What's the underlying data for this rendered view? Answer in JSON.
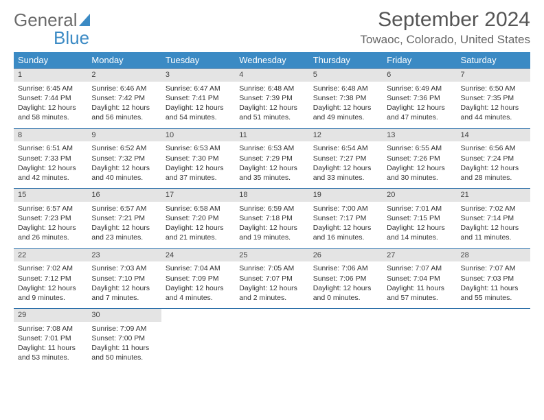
{
  "logo": {
    "line1": "General",
    "line2": "Blue"
  },
  "title": "September 2024",
  "location": "Towaoc, Colorado, United States",
  "colors": {
    "header_bg": "#3b8ac4",
    "row_border": "#2a6ea8",
    "daynum_bg": "#e4e4e4",
    "page_bg": "#ffffff",
    "text": "#333333",
    "logo_gray": "#6b6b6b"
  },
  "weekdays": [
    "Sunday",
    "Monday",
    "Tuesday",
    "Wednesday",
    "Thursday",
    "Friday",
    "Saturday"
  ],
  "start_index": 0,
  "days": [
    {
      "n": "1",
      "sunrise": "Sunrise: 6:45 AM",
      "sunset": "Sunset: 7:44 PM",
      "daylight": "Daylight: 12 hours and 58 minutes."
    },
    {
      "n": "2",
      "sunrise": "Sunrise: 6:46 AM",
      "sunset": "Sunset: 7:42 PM",
      "daylight": "Daylight: 12 hours and 56 minutes."
    },
    {
      "n": "3",
      "sunrise": "Sunrise: 6:47 AM",
      "sunset": "Sunset: 7:41 PM",
      "daylight": "Daylight: 12 hours and 54 minutes."
    },
    {
      "n": "4",
      "sunrise": "Sunrise: 6:48 AM",
      "sunset": "Sunset: 7:39 PM",
      "daylight": "Daylight: 12 hours and 51 minutes."
    },
    {
      "n": "5",
      "sunrise": "Sunrise: 6:48 AM",
      "sunset": "Sunset: 7:38 PM",
      "daylight": "Daylight: 12 hours and 49 minutes."
    },
    {
      "n": "6",
      "sunrise": "Sunrise: 6:49 AM",
      "sunset": "Sunset: 7:36 PM",
      "daylight": "Daylight: 12 hours and 47 minutes."
    },
    {
      "n": "7",
      "sunrise": "Sunrise: 6:50 AM",
      "sunset": "Sunset: 7:35 PM",
      "daylight": "Daylight: 12 hours and 44 minutes."
    },
    {
      "n": "8",
      "sunrise": "Sunrise: 6:51 AM",
      "sunset": "Sunset: 7:33 PM",
      "daylight": "Daylight: 12 hours and 42 minutes."
    },
    {
      "n": "9",
      "sunrise": "Sunrise: 6:52 AM",
      "sunset": "Sunset: 7:32 PM",
      "daylight": "Daylight: 12 hours and 40 minutes."
    },
    {
      "n": "10",
      "sunrise": "Sunrise: 6:53 AM",
      "sunset": "Sunset: 7:30 PM",
      "daylight": "Daylight: 12 hours and 37 minutes."
    },
    {
      "n": "11",
      "sunrise": "Sunrise: 6:53 AM",
      "sunset": "Sunset: 7:29 PM",
      "daylight": "Daylight: 12 hours and 35 minutes."
    },
    {
      "n": "12",
      "sunrise": "Sunrise: 6:54 AM",
      "sunset": "Sunset: 7:27 PM",
      "daylight": "Daylight: 12 hours and 33 minutes."
    },
    {
      "n": "13",
      "sunrise": "Sunrise: 6:55 AM",
      "sunset": "Sunset: 7:26 PM",
      "daylight": "Daylight: 12 hours and 30 minutes."
    },
    {
      "n": "14",
      "sunrise": "Sunrise: 6:56 AM",
      "sunset": "Sunset: 7:24 PM",
      "daylight": "Daylight: 12 hours and 28 minutes."
    },
    {
      "n": "15",
      "sunrise": "Sunrise: 6:57 AM",
      "sunset": "Sunset: 7:23 PM",
      "daylight": "Daylight: 12 hours and 26 minutes."
    },
    {
      "n": "16",
      "sunrise": "Sunrise: 6:57 AM",
      "sunset": "Sunset: 7:21 PM",
      "daylight": "Daylight: 12 hours and 23 minutes."
    },
    {
      "n": "17",
      "sunrise": "Sunrise: 6:58 AM",
      "sunset": "Sunset: 7:20 PM",
      "daylight": "Daylight: 12 hours and 21 minutes."
    },
    {
      "n": "18",
      "sunrise": "Sunrise: 6:59 AM",
      "sunset": "Sunset: 7:18 PM",
      "daylight": "Daylight: 12 hours and 19 minutes."
    },
    {
      "n": "19",
      "sunrise": "Sunrise: 7:00 AM",
      "sunset": "Sunset: 7:17 PM",
      "daylight": "Daylight: 12 hours and 16 minutes."
    },
    {
      "n": "20",
      "sunrise": "Sunrise: 7:01 AM",
      "sunset": "Sunset: 7:15 PM",
      "daylight": "Daylight: 12 hours and 14 minutes."
    },
    {
      "n": "21",
      "sunrise": "Sunrise: 7:02 AM",
      "sunset": "Sunset: 7:14 PM",
      "daylight": "Daylight: 12 hours and 11 minutes."
    },
    {
      "n": "22",
      "sunrise": "Sunrise: 7:02 AM",
      "sunset": "Sunset: 7:12 PM",
      "daylight": "Daylight: 12 hours and 9 minutes."
    },
    {
      "n": "23",
      "sunrise": "Sunrise: 7:03 AM",
      "sunset": "Sunset: 7:10 PM",
      "daylight": "Daylight: 12 hours and 7 minutes."
    },
    {
      "n": "24",
      "sunrise": "Sunrise: 7:04 AM",
      "sunset": "Sunset: 7:09 PM",
      "daylight": "Daylight: 12 hours and 4 minutes."
    },
    {
      "n": "25",
      "sunrise": "Sunrise: 7:05 AM",
      "sunset": "Sunset: 7:07 PM",
      "daylight": "Daylight: 12 hours and 2 minutes."
    },
    {
      "n": "26",
      "sunrise": "Sunrise: 7:06 AM",
      "sunset": "Sunset: 7:06 PM",
      "daylight": "Daylight: 12 hours and 0 minutes."
    },
    {
      "n": "27",
      "sunrise": "Sunrise: 7:07 AM",
      "sunset": "Sunset: 7:04 PM",
      "daylight": "Daylight: 11 hours and 57 minutes."
    },
    {
      "n": "28",
      "sunrise": "Sunrise: 7:07 AM",
      "sunset": "Sunset: 7:03 PM",
      "daylight": "Daylight: 11 hours and 55 minutes."
    },
    {
      "n": "29",
      "sunrise": "Sunrise: 7:08 AM",
      "sunset": "Sunset: 7:01 PM",
      "daylight": "Daylight: 11 hours and 53 minutes."
    },
    {
      "n": "30",
      "sunrise": "Sunrise: 7:09 AM",
      "sunset": "Sunset: 7:00 PM",
      "daylight": "Daylight: 11 hours and 50 minutes."
    }
  ]
}
